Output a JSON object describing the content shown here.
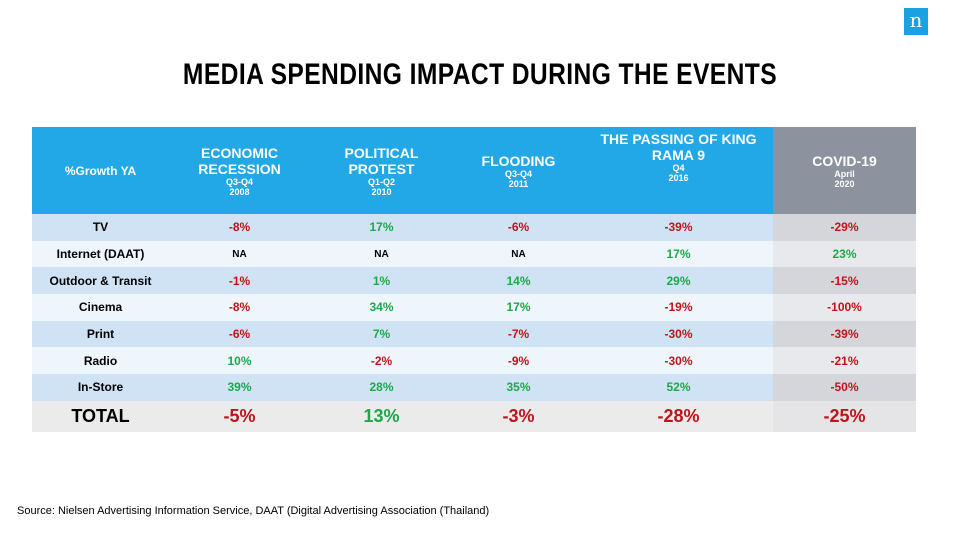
{
  "brand": {
    "logo_letter": "n",
    "color": "#1ba1e2"
  },
  "title": "MEDIA SPENDING IMPACT DURING THE EVENTS",
  "table": {
    "corner_label": "%Growth YA",
    "columns": [
      {
        "name": "ECONOMIC RECESSION",
        "period": "Q3-Q4",
        "year": "2008"
      },
      {
        "name": "POLITICAL PROTEST",
        "period": "Q1-Q2",
        "year": "2010"
      },
      {
        "name": "FLOODING",
        "period": "Q3-Q4",
        "year": "2011"
      },
      {
        "name": "THE PASSING OF KING RAMA 9",
        "period": "Q4",
        "year": "2016"
      },
      {
        "name": "COVID-19",
        "period": "April",
        "year": "2020"
      }
    ],
    "rows": [
      {
        "label": "TV",
        "values": [
          "-8%",
          "17%",
          "-6%",
          "-39%",
          "-29%"
        ]
      },
      {
        "label": "Internet (DAAT)",
        "values": [
          "NA",
          "NA",
          "NA",
          "17%",
          "23%"
        ]
      },
      {
        "label": "Outdoor & Transit",
        "values": [
          "-1%",
          "1%",
          "14%",
          "29%",
          "-15%"
        ]
      },
      {
        "label": "Cinema",
        "values": [
          "-8%",
          "34%",
          "17%",
          "-19%",
          "-100%"
        ]
      },
      {
        "label": "Print",
        "values": [
          "-6%",
          "7%",
          "-7%",
          "-30%",
          "-39%"
        ]
      },
      {
        "label": "Radio",
        "values": [
          "10%",
          "-2%",
          "-9%",
          "-30%",
          "-21%"
        ]
      },
      {
        "label": "In-Store",
        "values": [
          "39%",
          "28%",
          "35%",
          "52%",
          "-50%"
        ]
      },
      {
        "label": "TOTAL",
        "values": [
          "-5%",
          "13%",
          "-3%",
          "-28%",
          "-25%"
        ],
        "total": true
      }
    ]
  },
  "colors": {
    "header_blue": "#22a8e6",
    "header_grey": "#8c939e",
    "positive": "#1ea84a",
    "negative": "#c0141a"
  },
  "source": "Source: Nielsen Advertising Information Service, DAAT  (Digital Advertising Association (Thailand)"
}
